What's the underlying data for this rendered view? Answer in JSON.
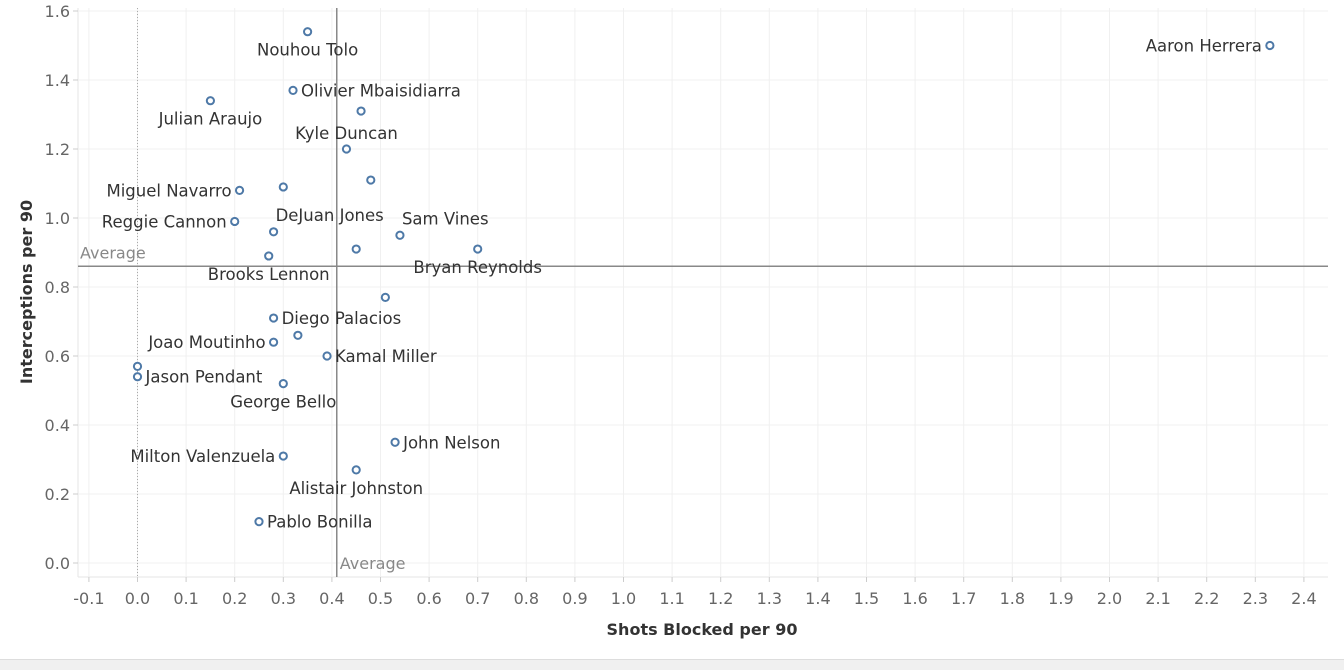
{
  "chart_data": {
    "type": "scatter",
    "xlabel": "Shots Blocked per 90",
    "ylabel": "Interceptions per 90",
    "xlim": [
      -0.12,
      2.44
    ],
    "ylim": [
      -0.04,
      1.64
    ],
    "x_ticks": [
      "-0.1",
      "0.0",
      "0.1",
      "0.2",
      "0.3",
      "0.4",
      "0.5",
      "0.6",
      "0.7",
      "0.8",
      "0.9",
      "1.0",
      "1.1",
      "1.2",
      "1.3",
      "1.4",
      "1.5",
      "1.6",
      "1.7",
      "1.8",
      "1.9",
      "2.0",
      "2.1",
      "2.2",
      "2.3",
      "2.4"
    ],
    "y_ticks": [
      "0.0",
      "0.2",
      "0.4",
      "0.6",
      "0.8",
      "1.0",
      "1.2",
      "1.4",
      "1.6"
    ],
    "grid": true,
    "marker_color": "#4e79a7",
    "reference_lines": {
      "x_average": {
        "value": 0.41,
        "label": "Average"
      },
      "y_average": {
        "value": 0.86,
        "label": "Average"
      },
      "x_zero_dotted": 0.0
    },
    "points": [
      {
        "name": "Nouhou Tolo",
        "x": 0.35,
        "y": 1.54,
        "label_pos": "below"
      },
      {
        "name": "Aaron Herrera",
        "x": 2.33,
        "y": 1.5,
        "label_pos": "left"
      },
      {
        "name": "Olivier Mbaisidiarra",
        "x": 0.32,
        "y": 1.37,
        "label_pos": "right"
      },
      {
        "name": "Julian Araujo",
        "x": 0.15,
        "y": 1.34,
        "label_pos": "below"
      },
      {
        "name": "",
        "x": 0.46,
        "y": 1.31,
        "label_pos": "none"
      },
      {
        "name": "Kyle Duncan",
        "x": 0.43,
        "y": 1.2,
        "label_pos": "above"
      },
      {
        "name": "",
        "x": 0.48,
        "y": 1.11,
        "label_pos": "none"
      },
      {
        "name": "",
        "x": 0.3,
        "y": 1.09,
        "label_pos": "none"
      },
      {
        "name": "Miguel Navarro",
        "x": 0.21,
        "y": 1.08,
        "label_pos": "left"
      },
      {
        "name": "Reggie Cannon",
        "x": 0.2,
        "y": 0.99,
        "label_pos": "left"
      },
      {
        "name": "DeJuan Jones",
        "x": 0.28,
        "y": 0.96,
        "label_pos": "above-right"
      },
      {
        "name": "Sam Vines",
        "x": 0.54,
        "y": 0.95,
        "label_pos": "above-right"
      },
      {
        "name": "",
        "x": 0.45,
        "y": 0.91,
        "label_pos": "none"
      },
      {
        "name": "Bryan Reynolds",
        "x": 0.7,
        "y": 0.91,
        "label_pos": "below"
      },
      {
        "name": "Brooks Lennon",
        "x": 0.27,
        "y": 0.89,
        "label_pos": "below"
      },
      {
        "name": "",
        "x": 0.51,
        "y": 0.77,
        "label_pos": "none"
      },
      {
        "name": "Diego Palacios",
        "x": 0.28,
        "y": 0.71,
        "label_pos": "right"
      },
      {
        "name": "",
        "x": 0.33,
        "y": 0.66,
        "label_pos": "none"
      },
      {
        "name": "Joao Moutinho",
        "x": 0.28,
        "y": 0.64,
        "label_pos": "left"
      },
      {
        "name": "Kamal Miller",
        "x": 0.39,
        "y": 0.6,
        "label_pos": "right"
      },
      {
        "name": "",
        "x": 0.0,
        "y": 0.57,
        "label_pos": "none"
      },
      {
        "name": "Jason Pendant",
        "x": 0.0,
        "y": 0.54,
        "label_pos": "right"
      },
      {
        "name": "George Bello",
        "x": 0.3,
        "y": 0.52,
        "label_pos": "below"
      },
      {
        "name": "John Nelson",
        "x": 0.53,
        "y": 0.35,
        "label_pos": "right"
      },
      {
        "name": "Milton Valenzuela",
        "x": 0.3,
        "y": 0.31,
        "label_pos": "left"
      },
      {
        "name": "Alistair Johnston",
        "x": 0.45,
        "y": 0.27,
        "label_pos": "below"
      },
      {
        "name": "Pablo Bonilla",
        "x": 0.25,
        "y": 0.12,
        "label_pos": "right"
      }
    ]
  }
}
